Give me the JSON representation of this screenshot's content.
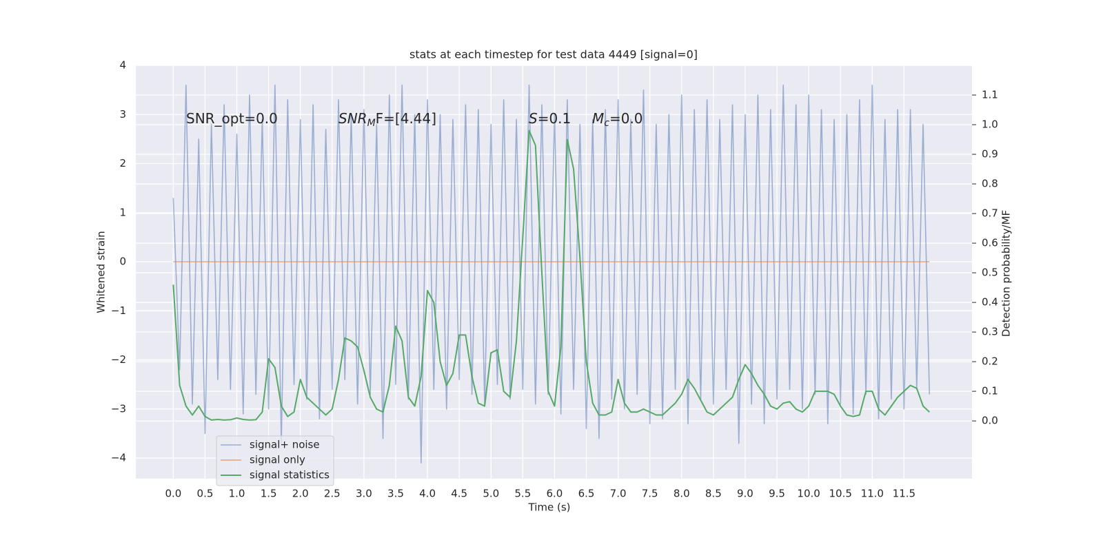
{
  "chart_data": {
    "type": "line",
    "title": "stats at each timestep for test data 4449 [signal=0]",
    "xlabel": "Time (s)",
    "ylabel": "Whitened strain",
    "y2label": "Detection probability/MF",
    "xlim": [
      -0.59,
      12.57
    ],
    "ylim": [
      -4.42,
      4.0
    ],
    "y2lim": [
      -0.195,
      1.2
    ],
    "xticks": [
      {
        "value": 0,
        "label": "0.0"
      },
      0.5,
      {
        "value": 1,
        "label": "1.0"
      },
      1.5,
      {
        "value": 2,
        "label": "2.0"
      },
      2.5,
      {
        "value": 3,
        "label": "3.0"
      },
      3.5,
      {
        "value": 4,
        "label": "4.0"
      },
      4.5,
      {
        "value": 5,
        "label": "5.0"
      },
      5.5,
      {
        "value": 6,
        "label": "6.0"
      },
      6.5,
      {
        "value": 7,
        "label": "7.0"
      },
      7.5,
      {
        "value": 8,
        "label": "8.0"
      },
      8.5,
      {
        "value": 9,
        "label": "9.0"
      },
      9.5,
      {
        "value": 10,
        "label": "10.0"
      },
      10.5,
      {
        "value": 11,
        "label": "11.0"
      },
      11.5
    ],
    "yticks": [
      {
        "value": -4,
        "label": "−4"
      },
      {
        "value": -3,
        "label": "−3"
      },
      {
        "value": -2,
        "label": "−2"
      },
      {
        "value": -1,
        "label": "−1"
      },
      0,
      1,
      2,
      3,
      4
    ],
    "y2ticks": [
      {
        "value": 0,
        "label": "0.0"
      },
      0.1,
      0.2,
      0.3,
      0.4,
      0.5,
      0.6,
      0.7,
      0.8,
      0.9,
      {
        "value": 1,
        "label": "1.0"
      },
      1.1
    ],
    "grid": true,
    "legend": "lower left",
    "annotations": [
      {
        "text": "SNR_opt=0.0"
      },
      {
        "text": "SNR",
        "sub": "M",
        "tail": "F=[4.44]"
      },
      {
        "text": "S",
        "tail": "=0.1"
      },
      {
        "text": "M",
        "sub": "c",
        "tail": "=0.0"
      }
    ],
    "x": [
      0.0,
      0.1,
      0.2,
      0.3,
      0.4,
      0.5,
      0.6,
      0.7,
      0.8,
      0.9,
      1.0,
      1.1,
      1.2,
      1.3,
      1.4,
      1.5,
      1.6,
      1.7,
      1.8,
      1.9,
      2.0,
      2.1,
      2.2,
      2.3,
      2.4,
      2.5,
      2.6,
      2.7,
      2.8,
      2.9,
      3.0,
      3.1,
      3.2,
      3.3,
      3.4,
      3.5,
      3.6,
      3.7,
      3.8,
      3.9,
      4.0,
      4.1,
      4.2,
      4.3,
      4.4,
      4.5,
      4.6,
      4.7,
      4.8,
      4.9,
      5.0,
      5.1,
      5.2,
      5.3,
      5.4,
      5.5,
      5.6,
      5.7,
      5.8,
      5.9,
      6.0,
      6.1,
      6.2,
      6.3,
      6.4,
      6.5,
      6.6,
      6.7,
      6.8,
      6.9,
      7.0,
      7.1,
      7.2,
      7.3,
      7.4,
      7.5,
      7.6,
      7.7,
      7.8,
      7.9,
      8.0,
      8.1,
      8.2,
      8.3,
      8.4,
      8.5,
      8.6,
      8.7,
      8.8,
      8.9,
      9.0,
      9.1,
      9.2,
      9.3,
      9.4,
      9.5,
      9.6,
      9.7,
      9.8,
      9.9,
      10.0,
      10.1,
      10.2,
      10.3,
      10.4,
      10.5,
      10.6,
      10.7,
      10.8,
      10.9,
      11.0,
      11.1,
      11.2,
      11.3,
      11.4,
      11.5,
      11.6,
      11.7,
      11.8,
      11.9
    ],
    "series": [
      {
        "name": "signal+ noise",
        "color": "#4c72b0",
        "values": [
          1.3,
          -2.2,
          3.6,
          -2.9,
          2.5,
          -3.5,
          2.8,
          -2.4,
          3.2,
          -2.6,
          2.6,
          -3.1,
          3.4,
          -2.7,
          2.9,
          -3.0,
          3.6,
          -3.7,
          3.3,
          -2.5,
          2.9,
          -2.8,
          3.2,
          -3.2,
          2.7,
          -2.6,
          3.3,
          -2.4,
          3.0,
          -2.9,
          3.1,
          -2.7,
          2.8,
          -3.6,
          3.4,
          -2.5,
          3.6,
          -2.8,
          3.0,
          -4.1,
          3.3,
          -2.6,
          3.0,
          -3.0,
          2.9,
          -2.4,
          3.2,
          -2.7,
          3.1,
          -2.9,
          2.8,
          -2.5,
          3.3,
          -2.8,
          2.9,
          -2.6,
          3.6,
          -2.9,
          3.2,
          -2.7,
          3.0,
          -3.1,
          3.3,
          -2.6,
          2.8,
          -3.4,
          2.9,
          -3.6,
          3.1,
          -2.8,
          3.3,
          -3.0,
          2.9,
          -2.7,
          3.5,
          -3.3,
          2.8,
          -3.2,
          3.0,
          -2.6,
          3.4,
          -3.3,
          3.1,
          -2.8,
          3.3,
          -2.9,
          2.9,
          -2.6,
          3.2,
          -3.7,
          3.0,
          -2.9,
          3.4,
          -3.3,
          3.1,
          -2.8,
          3.6,
          -2.6,
          3.2,
          -3.0,
          3.4,
          -2.7,
          3.1,
          -3.3,
          2.9,
          -2.9,
          3.0,
          -3.1,
          3.3,
          -2.7,
          3.6,
          -3.2,
          2.9,
          -2.8,
          3.1,
          -3.0,
          3.1,
          -2.6,
          2.8,
          -2.7
        ]
      },
      {
        "name": "signal only",
        "color": "#dd8452",
        "values": [
          0,
          0,
          0,
          0,
          0,
          0,
          0,
          0,
          0,
          0,
          0,
          0,
          0,
          0,
          0,
          0,
          0,
          0,
          0,
          0,
          0,
          0,
          0,
          0,
          0,
          0,
          0,
          0,
          0,
          0,
          0,
          0,
          0,
          0,
          0,
          0,
          0,
          0,
          0,
          0,
          0,
          0,
          0,
          0,
          0,
          0,
          0,
          0,
          0,
          0,
          0,
          0,
          0,
          0,
          0,
          0,
          0,
          0,
          0,
          0,
          0,
          0,
          0,
          0,
          0,
          0,
          0,
          0,
          0,
          0,
          0,
          0,
          0,
          0,
          0,
          0,
          0,
          0,
          0,
          0,
          0,
          0,
          0,
          0,
          0,
          0,
          0,
          0,
          0,
          0,
          0,
          0,
          0,
          0,
          0,
          0,
          0,
          0,
          0,
          0,
          0,
          0,
          0,
          0,
          0,
          0,
          0,
          0,
          0,
          0,
          0,
          0,
          0,
          0,
          0,
          0,
          0,
          0,
          0,
          0
        ]
      },
      {
        "name": "signal statistics",
        "color": "#55a868",
        "axis": "y2",
        "values": [
          0.46,
          0.12,
          0.05,
          0.02,
          0.05,
          0.015,
          0.003,
          0.005,
          0.003,
          0.004,
          0.01,
          0.005,
          0.003,
          0.004,
          0.03,
          0.21,
          0.18,
          0.05,
          0.015,
          0.03,
          0.14,
          0.08,
          0.06,
          0.04,
          0.02,
          0.04,
          0.14,
          0.28,
          0.27,
          0.25,
          0.17,
          0.08,
          0.04,
          0.03,
          0.12,
          0.32,
          0.27,
          0.08,
          0.05,
          0.15,
          0.44,
          0.4,
          0.2,
          0.12,
          0.16,
          0.29,
          0.29,
          0.15,
          0.06,
          0.05,
          0.23,
          0.24,
          0.1,
          0.08,
          0.27,
          0.62,
          0.98,
          0.93,
          0.5,
          0.1,
          0.05,
          0.25,
          0.95,
          0.85,
          0.55,
          0.2,
          0.06,
          0.02,
          0.02,
          0.03,
          0.14,
          0.06,
          0.03,
          0.03,
          0.04,
          0.03,
          0.02,
          0.02,
          0.04,
          0.06,
          0.09,
          0.14,
          0.11,
          0.07,
          0.03,
          0.02,
          0.04,
          0.06,
          0.08,
          0.14,
          0.19,
          0.16,
          0.12,
          0.09,
          0.05,
          0.04,
          0.06,
          0.065,
          0.04,
          0.03,
          0.05,
          0.1,
          0.1,
          0.1,
          0.09,
          0.05,
          0.02,
          0.015,
          0.02,
          0.1,
          0.1,
          0.04,
          0.02,
          0.05,
          0.08,
          0.1,
          0.12,
          0.11,
          0.05,
          0.03
        ]
      }
    ]
  }
}
